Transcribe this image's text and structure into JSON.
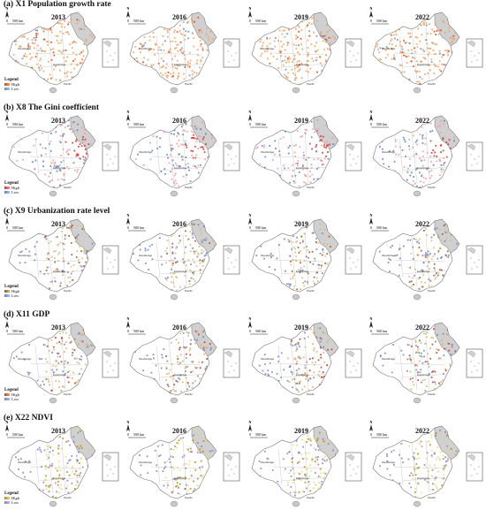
{
  "years": [
    "2013",
    "2016",
    "2019",
    "2022"
  ],
  "legend": {
    "title": "Legend",
    "high": "High",
    "low": "Low"
  },
  "scale_label": "500 km",
  "scale_zero": "0",
  "north_label": "N",
  "place_names": [
    "Westbridge",
    "Eastbridge",
    "Pacific"
  ],
  "rows": [
    {
      "title": "(a) X1  Population growth rate",
      "scheme": "orange",
      "colors": {
        "high": "#d84315",
        "mid": "#f0a060",
        "low": "#6a8cc0"
      }
    },
    {
      "title": "(b) X8  The Gini coefficient",
      "scheme": "red",
      "colors": {
        "high": "#d32f2f",
        "mid": "#ef9a9a",
        "low": "#5c7fb8"
      }
    },
    {
      "title": "(c) X9  Urbanization rate level",
      "scheme": "brown",
      "colors": {
        "high": "#a0522d",
        "mid": "#d8b880",
        "low": "#7080c0"
      }
    },
    {
      "title": "(d) X11  GDP",
      "scheme": "brownred",
      "colors": {
        "high": "#c0392b",
        "mid": "#d9b070",
        "low": "#6f86c0"
      }
    },
    {
      "title": "(e) X22  NDVI",
      "scheme": "yellow",
      "colors": {
        "high": "#b8860b",
        "mid": "#e8d890",
        "low": "#8a7fc8"
      }
    }
  ]
}
